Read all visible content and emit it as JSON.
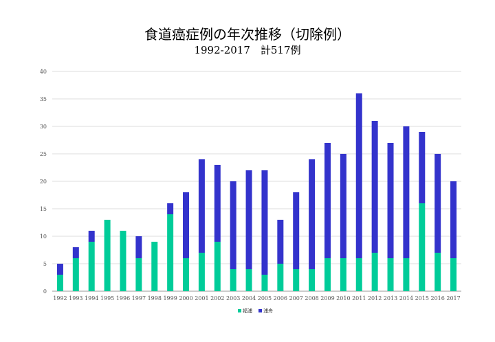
{
  "chart_data": {
    "type": "bar",
    "stacked": true,
    "title": "食道癌症例の年次推移（切除例）",
    "subtitle": "1992-2017　計517例",
    "categories": [
      "1992",
      "1993",
      "1994",
      "1995",
      "1996",
      "1997",
      "1998",
      "1999",
      "2000",
      "2001",
      "2002",
      "2003",
      "2004",
      "2005",
      "2006",
      "2007",
      "2008",
      "2009",
      "2010",
      "2011",
      "2012",
      "2013",
      "2014",
      "2015",
      "2016",
      "2017"
    ],
    "series": [
      {
        "name": "福浦",
        "color": "#00cc99",
        "values": [
          3,
          6,
          9,
          13,
          11,
          6,
          9,
          14,
          6,
          7,
          9,
          4,
          4,
          3,
          5,
          4,
          4,
          6,
          6,
          6,
          7,
          6,
          6,
          16,
          7,
          6
        ]
      },
      {
        "name": "浦舟",
        "color": "#3333cc",
        "values": [
          2,
          2,
          2,
          0,
          0,
          4,
          0,
          2,
          12,
          17,
          14,
          16,
          18,
          19,
          8,
          14,
          20,
          21,
          19,
          30,
          24,
          21,
          24,
          13,
          18,
          14
        ]
      }
    ],
    "ylim": [
      0,
      40
    ],
    "yticks": [
      0,
      5,
      10,
      15,
      20,
      25,
      30,
      35,
      40
    ],
    "grid": true,
    "legend": "bottom"
  }
}
